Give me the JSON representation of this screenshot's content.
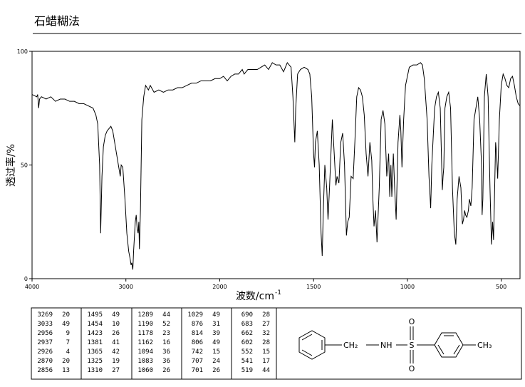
{
  "chart_data": {
    "type": "line",
    "title": "石蜡糊法",
    "x_label": "波数/cm",
    "x_label_sup": "-1",
    "y_label": "透过率/%",
    "xlim": [
      4000,
      400
    ],
    "ylim": [
      0,
      100
    ],
    "xticks": [
      4000,
      3000,
      2000,
      1500,
      1000,
      500
    ],
    "yticks": [
      0,
      50,
      100
    ],
    "x_scale_break": 2000,
    "x_expand_below_break": 2,
    "color": "#000000",
    "x": [
      4000,
      3950,
      3940,
      3930,
      3920,
      3900,
      3850,
      3800,
      3750,
      3700,
      3650,
      3600,
      3550,
      3500,
      3450,
      3400,
      3350,
      3320,
      3300,
      3280,
      3269,
      3255,
      3240,
      3220,
      3200,
      3180,
      3160,
      3140,
      3120,
      3100,
      3080,
      3060,
      3050,
      3033,
      3010,
      2990,
      2970,
      2956,
      2945,
      2937,
      2930,
      2926,
      2918,
      2900,
      2890,
      2880,
      2870,
      2862,
      2856,
      2845,
      2830,
      2810,
      2790,
      2760,
      2740,
      2700,
      2650,
      2600,
      2550,
      2500,
      2450,
      2400,
      2350,
      2300,
      2250,
      2200,
      2150,
      2100,
      2050,
      2000,
      1980,
      1960,
      1940,
      1920,
      1900,
      1880,
      1870,
      1850,
      1800,
      1780,
      1760,
      1740,
      1720,
      1700,
      1680,
      1660,
      1640,
      1620,
      1610,
      1600,
      1595,
      1585,
      1570,
      1550,
      1530,
      1520,
      1510,
      1500,
      1495,
      1490,
      1480,
      1470,
      1460,
      1454,
      1448,
      1440,
      1430,
      1423,
      1415,
      1400,
      1390,
      1381,
      1375,
      1365,
      1355,
      1345,
      1335,
      1325,
      1318,
      1310,
      1300,
      1289,
      1280,
      1270,
      1260,
      1250,
      1240,
      1230,
      1220,
      1210,
      1200,
      1190,
      1184,
      1178,
      1170,
      1162,
      1150,
      1140,
      1130,
      1120,
      1110,
      1100,
      1094,
      1088,
      1083,
      1075,
      1068,
      1060,
      1050,
      1040,
      1035,
      1029,
      1020,
      1010,
      990,
      970,
      950,
      930,
      920,
      910,
      895,
      885,
      876,
      870,
      855,
      845,
      835,
      825,
      814,
      810,
      806,
      800,
      790,
      780,
      770,
      760,
      750,
      742,
      735,
      725,
      715,
      707,
      701,
      695,
      690,
      683,
      675,
      670,
      662,
      655,
      645,
      635,
      625,
      615,
      605,
      602,
      598,
      590,
      580,
      570,
      560,
      552,
      546,
      541,
      535,
      530,
      525,
      519,
      510,
      500,
      490,
      480,
      470,
      460,
      450,
      440,
      430,
      420,
      410,
      400
    ],
    "values": [
      81,
      80,
      81,
      75,
      79,
      80,
      79,
      80,
      78,
      79,
      79,
      78,
      78,
      77,
      77,
      76,
      75,
      72,
      68,
      50,
      20,
      45,
      58,
      63,
      65,
      66,
      67,
      65,
      60,
      55,
      50,
      45,
      50,
      49,
      35,
      20,
      12,
      9,
      6,
      7,
      5,
      4,
      12,
      25,
      28,
      22,
      20,
      25,
      13,
      30,
      70,
      80,
      85,
      83,
      85,
      82,
      83,
      82,
      83,
      83,
      84,
      84,
      85,
      86,
      86,
      87,
      87,
      87,
      88,
      88,
      89,
      87,
      89,
      90,
      90,
      92,
      90,
      92,
      92,
      93,
      94,
      92,
      95,
      94,
      94,
      91,
      95,
      93,
      80,
      60,
      75,
      90,
      92,
      93,
      92,
      90,
      80,
      55,
      49,
      60,
      65,
      50,
      20,
      10,
      30,
      50,
      40,
      26,
      40,
      70,
      55,
      41,
      45,
      42,
      60,
      64,
      50,
      19,
      25,
      27,
      45,
      44,
      60,
      80,
      84,
      83,
      80,
      72,
      55,
      45,
      60,
      52,
      35,
      23,
      30,
      16,
      40,
      70,
      74,
      68,
      45,
      55,
      36,
      50,
      36,
      55,
      40,
      26,
      60,
      72,
      65,
      49,
      70,
      85,
      93,
      94,
      94,
      95,
      94,
      88,
      70,
      45,
      31,
      50,
      75,
      80,
      82,
      75,
      39,
      45,
      49,
      75,
      80,
      82,
      75,
      40,
      20,
      15,
      35,
      45,
      40,
      24,
      26,
      30,
      28,
      27,
      30,
      35,
      32,
      40,
      70,
      75,
      80,
      70,
      50,
      28,
      35,
      80,
      90,
      80,
      40,
      15,
      25,
      17,
      40,
      60,
      55,
      44,
      70,
      85,
      90,
      88,
      85,
      84,
      88,
      89,
      85,
      80,
      77,
      76
    ]
  },
  "peak_table": {
    "rows": [
      [
        [
          "3269",
          "20"
        ],
        [
          "1495",
          "49"
        ],
        [
          "1289",
          "44"
        ],
        [
          "1029",
          "49"
        ],
        [
          "690",
          "28"
        ]
      ],
      [
        [
          "3033",
          "49"
        ],
        [
          "1454",
          "10"
        ],
        [
          "1190",
          "52"
        ],
        [
          "876",
          "31"
        ],
        [
          "683",
          "27"
        ]
      ],
      [
        [
          "2956",
          "9"
        ],
        [
          "1423",
          "26"
        ],
        [
          "1178",
          "23"
        ],
        [
          "814",
          "39"
        ],
        [
          "662",
          "32"
        ]
      ],
      [
        [
          "2937",
          "7"
        ],
        [
          "1381",
          "41"
        ],
        [
          "1162",
          "16"
        ],
        [
          "806",
          "49"
        ],
        [
          "602",
          "28"
        ]
      ],
      [
        [
          "2926",
          "4"
        ],
        [
          "1365",
          "42"
        ],
        [
          "1094",
          "36"
        ],
        [
          "742",
          "15"
        ],
        [
          "552",
          "15"
        ]
      ],
      [
        [
          "2870",
          "20"
        ],
        [
          "1325",
          "19"
        ],
        [
          "1083",
          "36"
        ],
        [
          "707",
          "24"
        ],
        [
          "541",
          "17"
        ]
      ],
      [
        [
          "2856",
          "13"
        ],
        [
          "1310",
          "27"
        ],
        [
          "1060",
          "26"
        ],
        [
          "701",
          "26"
        ],
        [
          "519",
          "44"
        ]
      ]
    ]
  },
  "structure": {
    "ch2": "CH₂",
    "nh": "NH",
    "s": "S",
    "o_top": "O",
    "o_bottom": "O",
    "ch3": "CH₃"
  }
}
